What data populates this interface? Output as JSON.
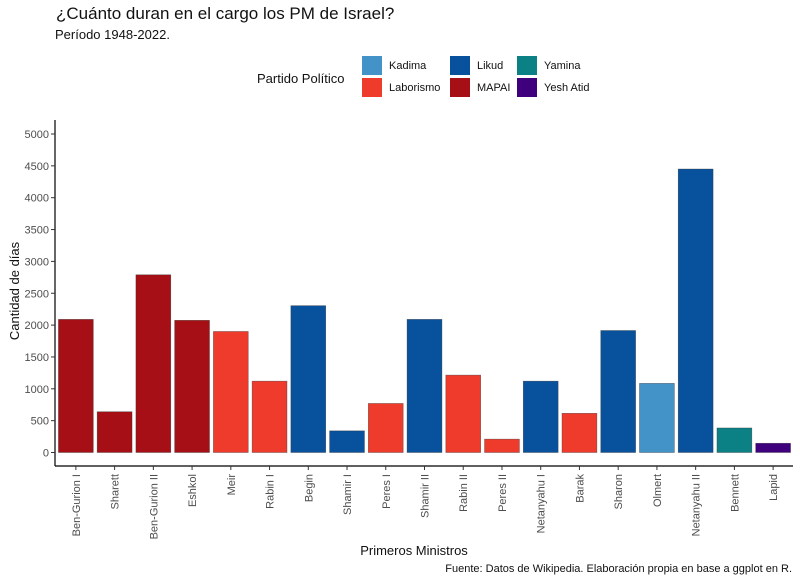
{
  "chart_data": {
    "type": "bar",
    "title": "¿Cuánto duran en el cargo los PM de Israel?",
    "subtitle": "Período 1948-2022.",
    "xlabel": "Primeros Ministros",
    "ylabel": "Cantidad de días",
    "caption": "Fuente: Datos de Wikipedia. Elaboración propia en base a ggplot en R.",
    "ylim": [
      0,
      5000
    ],
    "yticks": [
      0,
      500,
      1000,
      1500,
      2000,
      2500,
      3000,
      3500,
      4000,
      4500,
      5000
    ],
    "grid": false,
    "legend": {
      "title": "Partido Político",
      "position": "top",
      "entries": [
        {
          "name": "Kadima",
          "color": "#4393c9"
        },
        {
          "name": "Laborismo",
          "color": "#ef3b2c"
        },
        {
          "name": "Likud",
          "color": "#08519c"
        },
        {
          "name": "MAPAI",
          "color": "#a50f15"
        },
        {
          "name": "Yamina",
          "color": "#0b8185"
        },
        {
          "name": "Yesh Atid",
          "color": "#3f007d"
        }
      ]
    },
    "categories": [
      "Ben-Gurion I",
      "Sharett",
      "Ben-Gurion II",
      "Eshkol",
      "Meir",
      "Rabin I",
      "Begin",
      "Shamir I",
      "Peres I",
      "Shamir II",
      "Rabin II",
      "Peres II",
      "Netanyahu I",
      "Barak",
      "Sharon",
      "Olmert",
      "Netanyahu II",
      "Bennett",
      "Lapid"
    ],
    "values": [
      2090,
      640,
      2790,
      2075,
      1900,
      1120,
      2305,
      340,
      770,
      2090,
      1215,
      210,
      1120,
      615,
      1915,
      1085,
      4450,
      385,
      145
    ],
    "party": [
      "MAPAI",
      "MAPAI",
      "MAPAI",
      "MAPAI",
      "Laborismo",
      "Laborismo",
      "Likud",
      "Likud",
      "Laborismo",
      "Likud",
      "Laborismo",
      "Laborismo",
      "Likud",
      "Laborismo",
      "Likud",
      "Kadima",
      "Likud",
      "Yamina",
      "Yesh Atid"
    ]
  }
}
